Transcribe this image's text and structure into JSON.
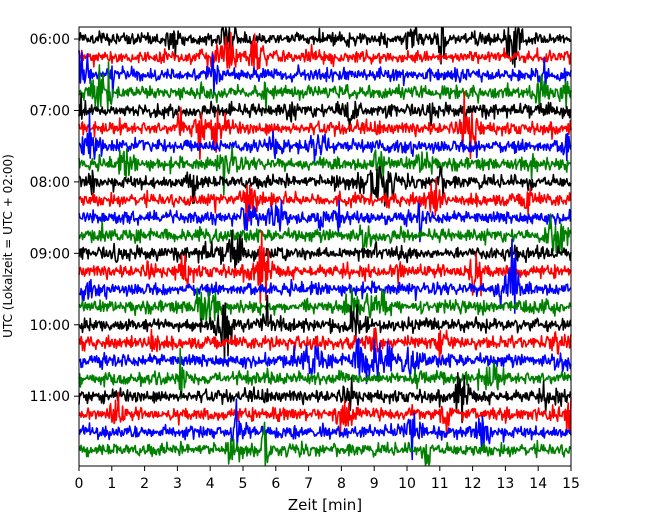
{
  "chart_data": {
    "type": "line",
    "title": "",
    "xlabel": "Zeit  [min]",
    "ylabel": "UTC (Lokalzeit = UTC + 02:00)",
    "xlim": [
      0,
      15
    ],
    "x_ticks": [
      0,
      1,
      2,
      3,
      4,
      5,
      6,
      7,
      8,
      9,
      10,
      11,
      12,
      13,
      14,
      15
    ],
    "x_tick_labels": [
      "0",
      "1",
      "2",
      "3",
      "4",
      "5",
      "6",
      "7",
      "8",
      "9",
      "10",
      "11",
      "12",
      "13",
      "14",
      "15"
    ],
    "y_tick_labels": [
      "06:00",
      "07:00",
      "08:00",
      "09:00",
      "10:00",
      "11:00"
    ],
    "trace_interval_min": 15,
    "start_time": "06:00",
    "end_time": "11:45",
    "trace_count": 24,
    "trace_colors": [
      "#000000",
      "#ff0000",
      "#0000ff",
      "#008000"
    ],
    "grid": false,
    "legend": "none",
    "description": "Seismogram helicorder plot: one trace per 15-minute interval, colors cycling black, red, blue, green"
  }
}
